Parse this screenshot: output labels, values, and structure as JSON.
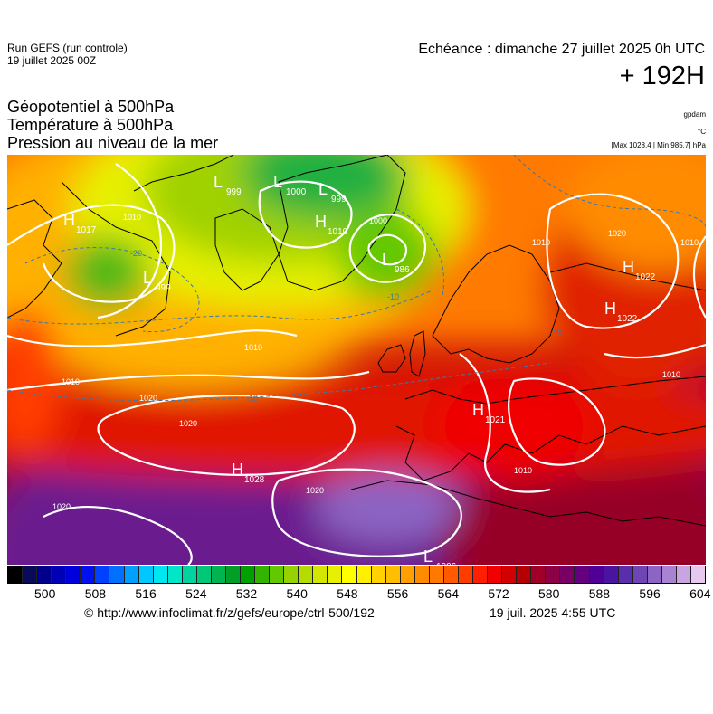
{
  "header": {
    "run_label": "Run GEFS (run controle)",
    "run_date": "19 juillet 2025 00Z",
    "valid_time": "Echéance : dimanche 27 juillet 2025 0h UTC",
    "lead_time": "+ 192H"
  },
  "parameters": {
    "line1": "Géopotentiel à 500hPa",
    "line2": "Température à 500hPa",
    "line3": "Pression au niveau de la mer"
  },
  "units": {
    "geopotential": "gpdam",
    "temperature": "°C",
    "max_min": "[Max 1028.4 | Min 985.7] hPa"
  },
  "pressure_centers": [
    {
      "type": "H",
      "value": "1017"
    },
    {
      "type": "L",
      "value": "999"
    },
    {
      "type": "L",
      "value": "1000"
    },
    {
      "type": "L",
      "value": "999"
    },
    {
      "type": "H",
      "value": "1010"
    },
    {
      "type": "L",
      "value": "986"
    },
    {
      "type": "L",
      "value": "999"
    },
    {
      "type": "H",
      "value": "1022"
    },
    {
      "type": "H",
      "value": "1022"
    },
    {
      "type": "H",
      "value": "1021"
    },
    {
      "type": "H",
      "value": "1028"
    },
    {
      "type": "L",
      "value": "1006"
    }
  ],
  "isobar_labels": [
    "1010",
    "1000",
    "1010",
    "1010",
    "1020",
    "1010",
    "1010",
    "1010",
    "1020",
    "1020",
    "1020",
    "1020",
    "1010"
  ],
  "isotherm_labels": [
    "-20",
    "-10",
    "-10",
    "-10"
  ],
  "colorbar": {
    "colors": [
      "#000000",
      "#0a0a5a",
      "#00008c",
      "#0000b4",
      "#0000dc",
      "#0010f0",
      "#0040ff",
      "#0070ff",
      "#00a0ff",
      "#00c8ff",
      "#00e6f0",
      "#00e6c8",
      "#00d2a0",
      "#00c878",
      "#00b450",
      "#00a028",
      "#00a000",
      "#32b400",
      "#64c800",
      "#96d200",
      "#b4dc00",
      "#d2e600",
      "#e6f000",
      "#ffff00",
      "#fff000",
      "#ffd200",
      "#ffbe00",
      "#ffa000",
      "#ff8c00",
      "#ff7800",
      "#ff5a00",
      "#ff3c00",
      "#ff1e00",
      "#f00000",
      "#d20000",
      "#b40000",
      "#a00028",
      "#8c0046",
      "#780064",
      "#64007d",
      "#500096",
      "#4b14a0",
      "#5a2daa",
      "#6e46b4",
      "#8c64c3",
      "#aa82d2",
      "#c8a5e1",
      "#e6c8f0"
    ],
    "ticks": [
      "500",
      "508",
      "516",
      "524",
      "532",
      "540",
      "548",
      "556",
      "564",
      "572",
      "580",
      "588",
      "596",
      "604"
    ]
  },
  "footer": {
    "credit": "© http://www.infoclimat.fr/z/gefs/europe/ctrl-500/192",
    "issued": "19 juil. 2025  4:55 UTC"
  }
}
